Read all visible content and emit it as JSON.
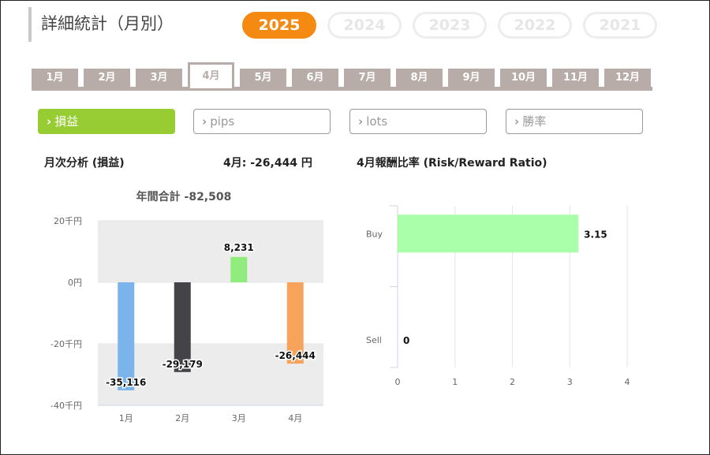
{
  "page": {
    "title": "詳細統計（月別）"
  },
  "years": [
    {
      "label": "2025",
      "active": true
    },
    {
      "label": "2024",
      "active": false
    },
    {
      "label": "2023",
      "active": false
    },
    {
      "label": "2022",
      "active": false
    },
    {
      "label": "2021",
      "active": false
    }
  ],
  "months": [
    {
      "label": "1月",
      "active": false
    },
    {
      "label": "2月",
      "active": false
    },
    {
      "label": "3月",
      "active": false
    },
    {
      "label": "4月",
      "active": true
    },
    {
      "label": "5月",
      "active": false
    },
    {
      "label": "6月",
      "active": false
    },
    {
      "label": "7月",
      "active": false
    },
    {
      "label": "8月",
      "active": false
    },
    {
      "label": "9月",
      "active": false
    },
    {
      "label": "10月",
      "active": false
    },
    {
      "label": "11月",
      "active": false
    },
    {
      "label": "12月",
      "active": false
    }
  ],
  "filters": [
    {
      "label": "損益",
      "active": true
    },
    {
      "label": "pips",
      "active": false
    },
    {
      "label": "lots",
      "active": false
    },
    {
      "label": "勝率",
      "active": false
    }
  ],
  "chevron_icon": "chevron-right-icon",
  "analysis": {
    "title": "月次分析 (損益)",
    "month_summary": "4月:  -26,444 円"
  },
  "rr": {
    "title": "4月報酬比率 (Risk/Reward Ratio)"
  },
  "colors": {
    "accent_year": "#f58a12",
    "accent_filter": "#97cc33",
    "tab_gray": "#b8aca8"
  },
  "chart_data": [
    {
      "type": "bar",
      "title": "年間合計 -82,508",
      "categories": [
        "1月",
        "2月",
        "3月",
        "4月"
      ],
      "values": [
        -35116,
        -29179,
        8231,
        -26444
      ],
      "value_labels": [
        "-35,116",
        "-29,179",
        "8,231",
        "-26,444"
      ],
      "colors": [
        "#7ab4ea",
        "#434348",
        "#90ed7d",
        "#f7a35c"
      ],
      "y_ticks": [
        20000,
        0,
        -20000,
        -40000
      ],
      "y_tick_labels": [
        "20千円",
        "0円",
        "-20千円",
        "-40千円"
      ],
      "ylim": [
        -40000,
        20000
      ],
      "alternating_bands": true
    },
    {
      "type": "bar",
      "orientation": "horizontal",
      "categories": [
        "Buy",
        "Sell"
      ],
      "values": [
        3.15,
        0
      ],
      "value_labels": [
        "3.15",
        "0"
      ],
      "color": "#aaffaa",
      "x_ticks": [
        0,
        1,
        2,
        3,
        4
      ],
      "xlim": [
        0,
        4
      ],
      "grid": true
    }
  ]
}
